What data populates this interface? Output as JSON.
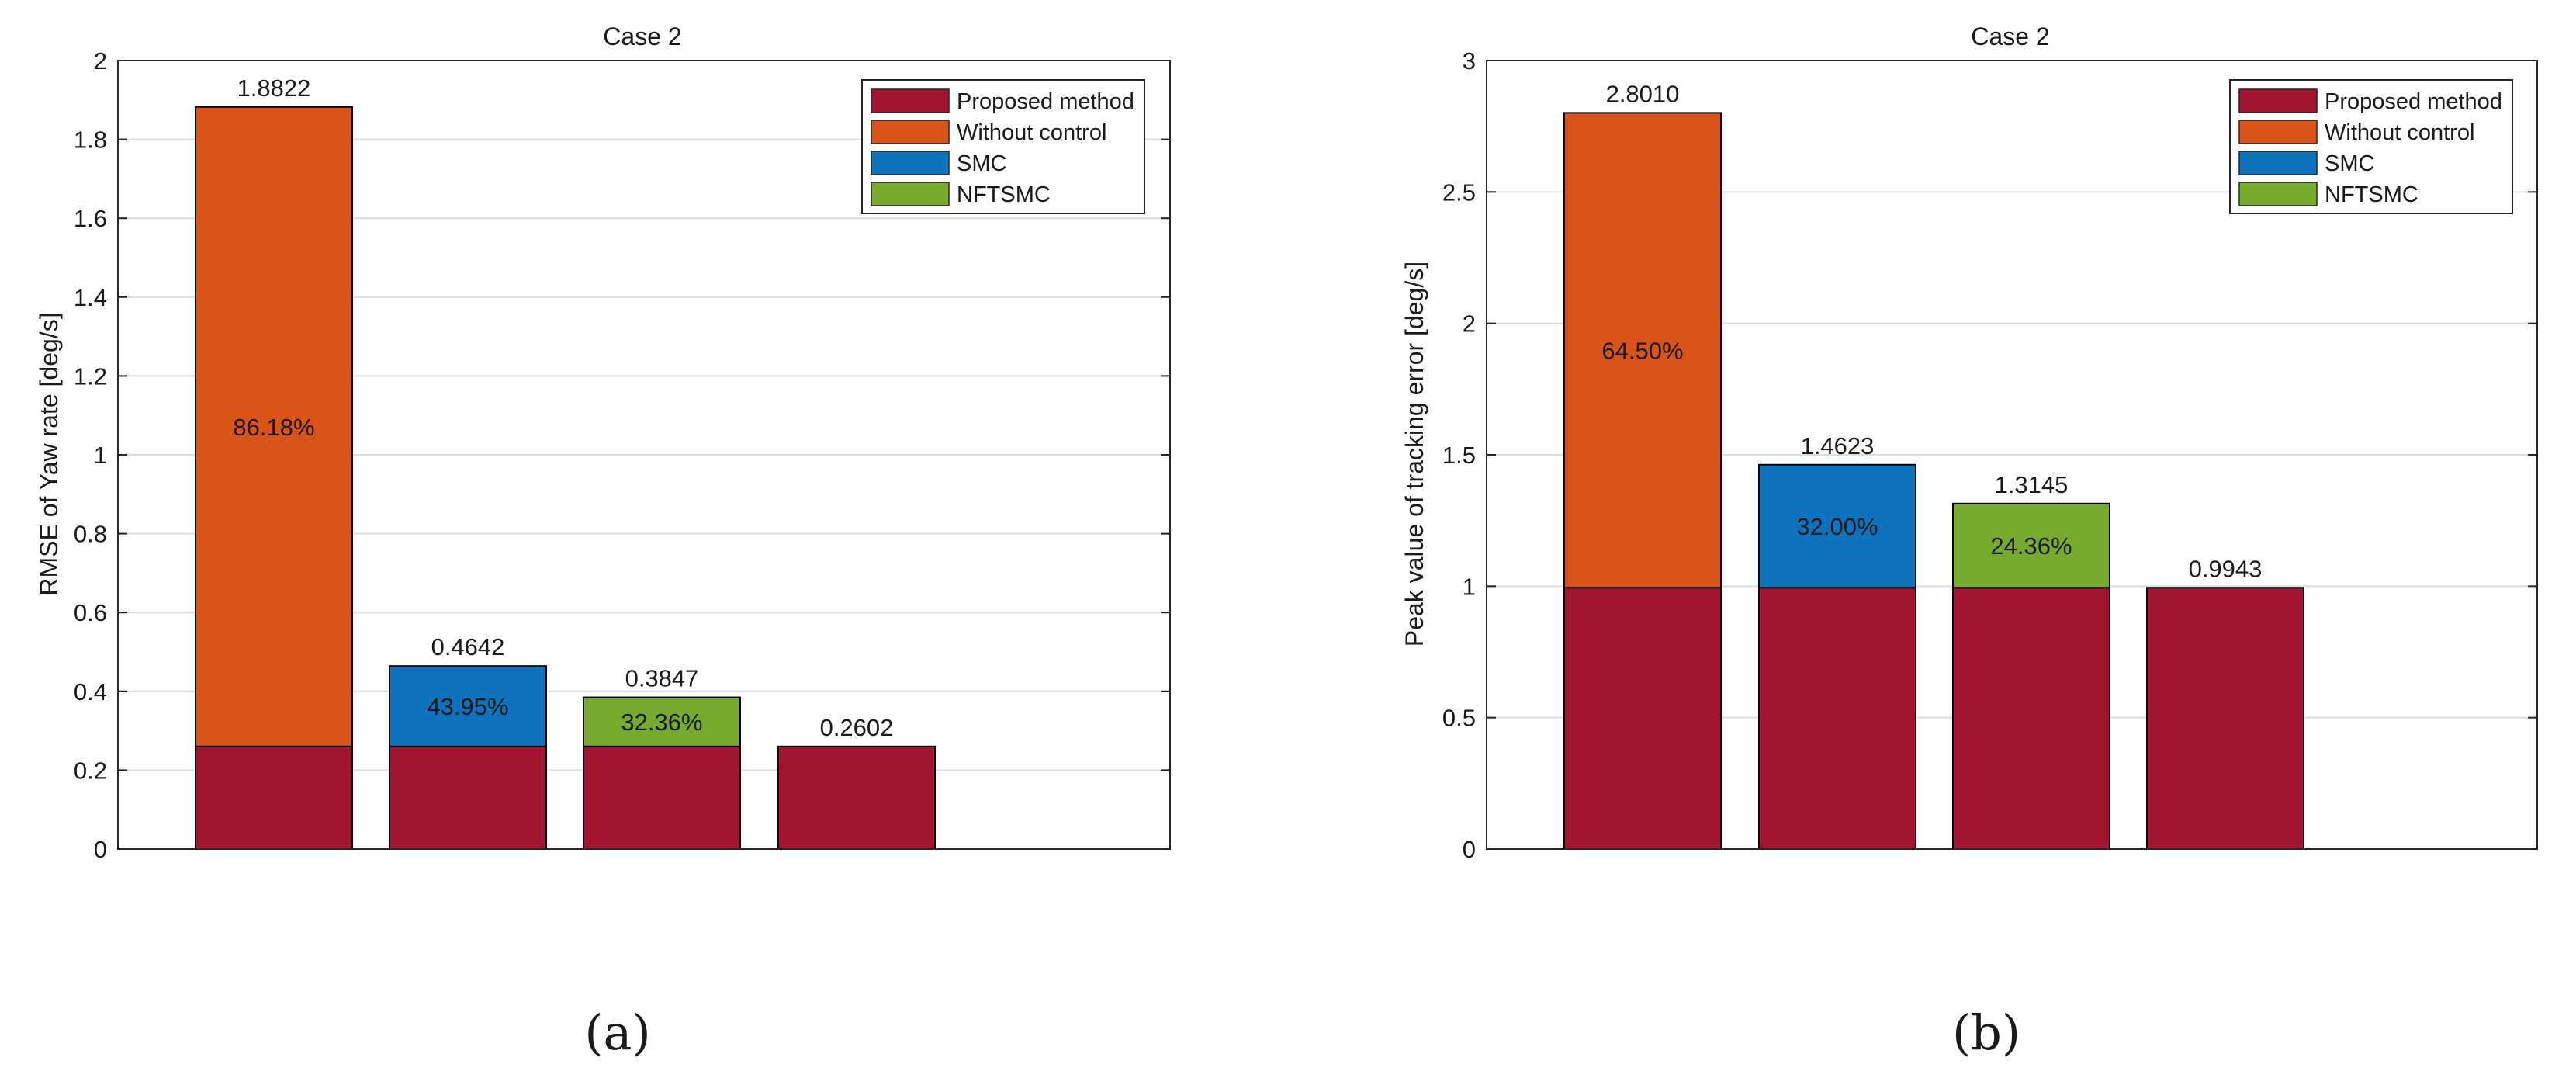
{
  "colors": {
    "proposed": "#a21530",
    "without": "#d95419",
    "smc": "#0f72bd",
    "nftsmc": "#76ab2f",
    "grid": "#dedede",
    "axis": "#262626"
  },
  "captions": [
    "(a)",
    "(b)"
  ],
  "chart_data": [
    {
      "type": "bar",
      "stacked": true,
      "title": "Case 2",
      "xlabel": "",
      "ylabel": "RMSE of Yaw rate [deg/s]",
      "ylim": [
        0,
        2
      ],
      "yticks": [
        0,
        0.2,
        0.4,
        0.6,
        0.8,
        1,
        1.2,
        1.4,
        1.6,
        1.8,
        2
      ],
      "ytick_labels": [
        "0",
        "0.2",
        "0.4",
        "0.6",
        "0.8",
        "1",
        "1.2",
        "1.4",
        "1.6",
        "1.8",
        "2"
      ],
      "grid": true,
      "legend_position": "top-right",
      "legend": [
        {
          "label": "Proposed method",
          "color_key": "proposed"
        },
        {
          "label": "Without control",
          "color_key": "without"
        },
        {
          "label": "SMC",
          "color_key": "smc"
        },
        {
          "label": "NFTSMC",
          "color_key": "nftsmc"
        }
      ],
      "bars": [
        {
          "name": "Without control",
          "base": 0.2602,
          "total": 1.8822,
          "total_label": "1.8822",
          "upper_color_key": "without",
          "percent_label": "86.18%"
        },
        {
          "name": "SMC",
          "base": 0.2602,
          "total": 0.4642,
          "total_label": "0.4642",
          "upper_color_key": "smc",
          "percent_label": "43.95%"
        },
        {
          "name": "NFTSMC",
          "base": 0.2602,
          "total": 0.3847,
          "total_label": "0.3847",
          "upper_color_key": "nftsmc",
          "percent_label": "32.36%"
        },
        {
          "name": "Proposed method",
          "base": 0.2602,
          "total": 0.2602,
          "total_label": "0.2602",
          "upper_color_key": "proposed",
          "percent_label": ""
        }
      ]
    },
    {
      "type": "bar",
      "stacked": true,
      "title": "Case 2",
      "xlabel": "",
      "ylabel": "Peak value of tracking error [deg/s]",
      "ylim": [
        0,
        3
      ],
      "yticks": [
        0,
        0.5,
        1,
        1.5,
        2,
        2.5,
        3
      ],
      "ytick_labels": [
        "0",
        "0.5",
        "1",
        "1.5",
        "2",
        "2.5",
        "3"
      ],
      "grid": true,
      "legend_position": "top-right",
      "legend": [
        {
          "label": "Proposed method",
          "color_key": "proposed"
        },
        {
          "label": "Without control",
          "color_key": "without"
        },
        {
          "label": "SMC",
          "color_key": "smc"
        },
        {
          "label": "NFTSMC",
          "color_key": "nftsmc"
        }
      ],
      "bars": [
        {
          "name": "Without control",
          "base": 0.9943,
          "total": 2.801,
          "total_label": "2.8010",
          "upper_color_key": "without",
          "percent_label": "64.50%"
        },
        {
          "name": "SMC",
          "base": 0.9943,
          "total": 1.4623,
          "total_label": "1.4623",
          "upper_color_key": "smc",
          "percent_label": "32.00%"
        },
        {
          "name": "NFTSMC",
          "base": 0.9943,
          "total": 1.3145,
          "total_label": "1.3145",
          "upper_color_key": "nftsmc",
          "percent_label": "24.36%"
        },
        {
          "name": "Proposed method",
          "base": 0.9943,
          "total": 0.9943,
          "total_label": "0.9943",
          "upper_color_key": "proposed",
          "percent_label": ""
        }
      ]
    }
  ]
}
